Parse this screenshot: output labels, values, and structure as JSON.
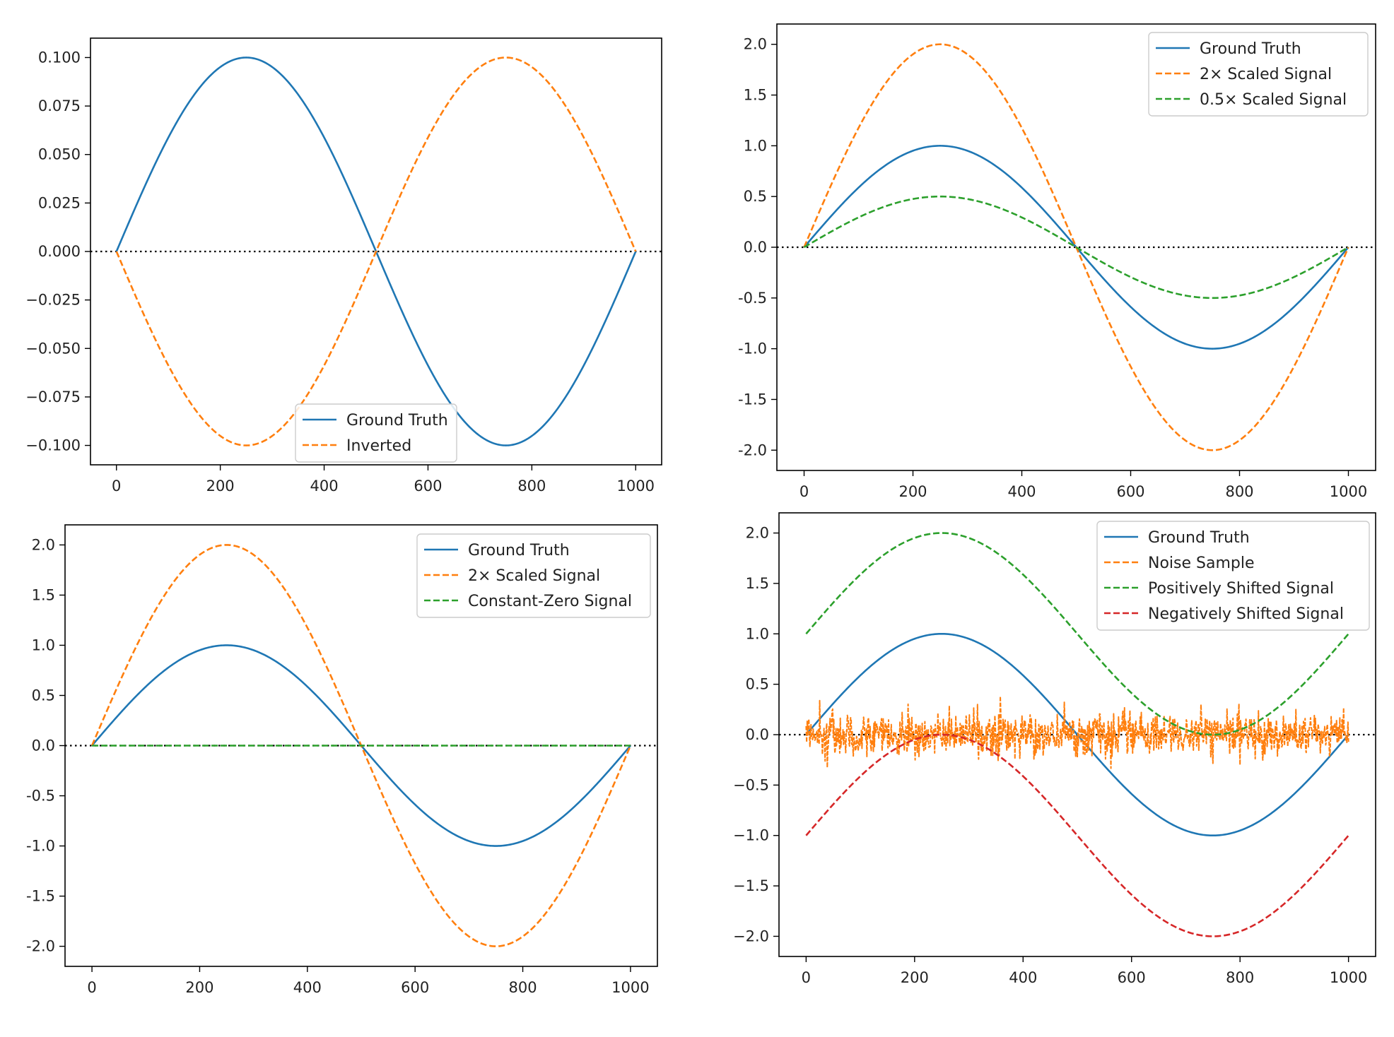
{
  "colors": {
    "blue": "#1f77b4",
    "orange": "#ff7f0e",
    "green": "#2ca02c",
    "red": "#d62728",
    "zero_line": "#000000"
  },
  "chart_data": [
    {
      "type": "line",
      "title": "",
      "xlabel": "",
      "ylabel": "",
      "xlim": [
        -50,
        1050
      ],
      "ylim": [
        -0.11,
        0.11
      ],
      "xticks": [
        0,
        200,
        400,
        600,
        800,
        1000
      ],
      "yticks": [
        -0.1,
        -0.075,
        -0.05,
        -0.025,
        0,
        0.025,
        0.05,
        0.075,
        0.1
      ],
      "ytick_labels": [
        "−0.100",
        "−0.075",
        "−0.050",
        "−0.025",
        "0.000",
        "0.025",
        "0.050",
        "0.075",
        "0.100"
      ],
      "grid": false,
      "zero_line": true,
      "legend_position": "lower-center",
      "series": [
        {
          "name": "Ground Truth",
          "function": "sine",
          "amplitude": 0.1,
          "offset": 0,
          "x_range": [
            0,
            1000
          ],
          "style": "solid",
          "color": "#1f77b4"
        },
        {
          "name": "Inverted",
          "function": "sine",
          "amplitude": -0.1,
          "offset": 0,
          "x_range": [
            0,
            1000
          ],
          "style": "dashed",
          "color": "#ff7f0e"
        }
      ]
    },
    {
      "type": "line",
      "title": "",
      "xlabel": "",
      "ylabel": "",
      "xlim": [
        -50,
        1050
      ],
      "ylim": [
        -2.2,
        2.2
      ],
      "xticks": [
        0,
        200,
        400,
        600,
        800,
        1000
      ],
      "yticks": [
        -2,
        -1.5,
        -1,
        -0.5,
        0,
        0.5,
        1,
        1.5,
        2
      ],
      "ytick_labels": [
        "-2.0",
        "-1.5",
        "-1.0",
        "-0.5",
        "0.0",
        "0.5",
        "1.0",
        "1.5",
        "2.0"
      ],
      "grid": false,
      "zero_line": true,
      "legend_position": "upper-right",
      "series": [
        {
          "name": "Ground Truth",
          "function": "sine",
          "amplitude": 1,
          "offset": 0,
          "x_range": [
            0,
            1000
          ],
          "style": "solid",
          "color": "#1f77b4"
        },
        {
          "name": "2× Scaled Signal",
          "function": "sine",
          "amplitude": 2,
          "offset": 0,
          "x_range": [
            0,
            1000
          ],
          "style": "dashed",
          "color": "#ff7f0e"
        },
        {
          "name": "0.5× Scaled Signal",
          "function": "sine",
          "amplitude": 0.5,
          "offset": 0,
          "x_range": [
            0,
            1000
          ],
          "style": "dashed",
          "color": "#2ca02c"
        }
      ]
    },
    {
      "type": "line",
      "title": "",
      "xlabel": "",
      "ylabel": "",
      "xlim": [
        -50,
        1050
      ],
      "ylim": [
        -2.2,
        2.2
      ],
      "xticks": [
        0,
        200,
        400,
        600,
        800,
        1000
      ],
      "yticks": [
        -2,
        -1.5,
        -1,
        -0.5,
        0,
        0.5,
        1,
        1.5,
        2
      ],
      "ytick_labels": [
        "-2.0",
        "-1.5",
        "-1.0",
        "-0.5",
        "0.0",
        "0.5",
        "1.0",
        "1.5",
        "2.0"
      ],
      "grid": false,
      "zero_line": true,
      "legend_position": "upper-right",
      "series": [
        {
          "name": "Ground Truth",
          "function": "sine",
          "amplitude": 1,
          "offset": 0,
          "x_range": [
            0,
            1000
          ],
          "style": "solid",
          "color": "#1f77b4"
        },
        {
          "name": "2× Scaled Signal",
          "function": "sine",
          "amplitude": 2,
          "offset": 0,
          "x_range": [
            0,
            1000
          ],
          "style": "dashed",
          "color": "#ff7f0e"
        },
        {
          "name": "Constant-Zero Signal",
          "function": "constant",
          "amplitude": 0,
          "offset": 0,
          "x_range": [
            0,
            1000
          ],
          "style": "dashed",
          "color": "#2ca02c"
        }
      ]
    },
    {
      "type": "line",
      "title": "",
      "xlabel": "",
      "ylabel": "",
      "xlim": [
        -50,
        1050
      ],
      "ylim": [
        -2.2,
        2.2
      ],
      "xticks": [
        0,
        200,
        400,
        600,
        800,
        1000
      ],
      "yticks": [
        -2,
        -1.5,
        -1,
        -0.5,
        0,
        0.5,
        1,
        1.5,
        2
      ],
      "ytick_labels": [
        "−2.0",
        "−1.5",
        "−1.0",
        "−0.5",
        "0.0",
        "0.5",
        "1.0",
        "1.5",
        "2.0"
      ],
      "grid": false,
      "zero_line": true,
      "legend_position": "upper-right",
      "series": [
        {
          "name": "Ground Truth",
          "function": "sine",
          "amplitude": 1,
          "offset": 0,
          "x_range": [
            0,
            1000
          ],
          "style": "solid",
          "color": "#1f77b4"
        },
        {
          "name": "Noise Sample",
          "function": "noise",
          "amplitude": 0.1,
          "offset": 0,
          "x_range": [
            0,
            1000
          ],
          "style": "dashed",
          "color": "#ff7f0e"
        },
        {
          "name": "Positively Shifted Signal",
          "function": "sine",
          "amplitude": 1,
          "offset": 1,
          "x_range": [
            0,
            1000
          ],
          "style": "dashed",
          "color": "#2ca02c"
        },
        {
          "name": "Negatively Shifted Signal",
          "function": "sine",
          "amplitude": 1,
          "offset": -1,
          "x_range": [
            0,
            1000
          ],
          "style": "dashed",
          "color": "#d62728"
        }
      ]
    }
  ]
}
